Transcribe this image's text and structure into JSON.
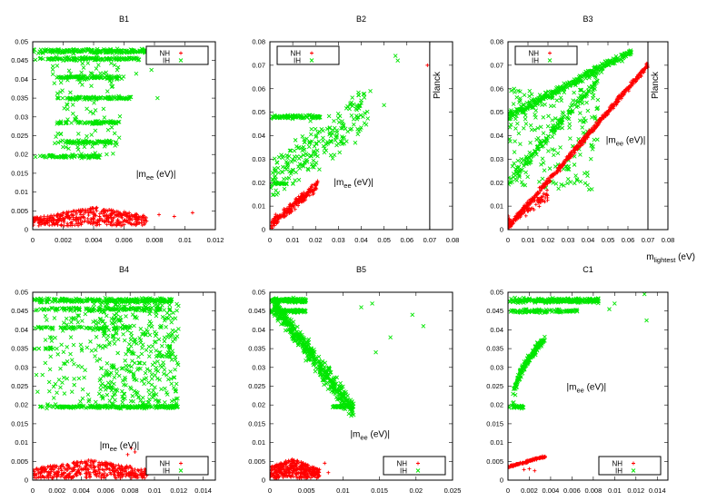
{
  "figure": {
    "x_axis_label_main": "m",
    "x_axis_label_sub": "lightest",
    "x_axis_label_unit": " (eV)",
    "colors": {
      "NH": "#ff0000",
      "IH": "#00e600",
      "frame": "#000000"
    }
  },
  "chart_data": [
    {
      "type": "scatter",
      "title": "B1",
      "xlim": [
        0,
        0.012
      ],
      "ylim": [
        0,
        0.05
      ],
      "xticks": [
        "0",
        "0.002",
        "0.004",
        "0.006",
        "0.008",
        "0.01",
        "0.012"
      ],
      "yticks": [
        "0",
        "0.005",
        "0.01",
        "0.015",
        "0.02",
        "0.025",
        "0.03",
        "0.035",
        "0.04",
        "0.045",
        "0.05"
      ],
      "annotation": {
        "pre": "|m",
        "sub": "ee",
        "post": " (eV)|",
        "x": 0.0068,
        "y": 0.014
      },
      "legend": {
        "position": "top-right",
        "entries": [
          "NH",
          "IH"
        ]
      },
      "series": [
        {
          "name": "NH",
          "marker": "plus",
          "color": "#ff0000",
          "regions": [
            {
              "kind": "blob",
              "x": [
                0,
                0.0075
              ],
              "ymin": 0.001,
              "ymax": 0.006,
              "peak": 0.0042,
              "n": 420
            },
            {
              "kind": "points",
              "pts": [
                [
                  0.0083,
                  0.004
                ],
                [
                  0.0093,
                  0.0035
                ],
                [
                  0.0105,
                  0.0045
                ]
              ]
            }
          ]
        },
        {
          "name": "IH",
          "marker": "cross",
          "color": "#00e600",
          "regions": [
            {
              "kind": "hband",
              "y": 0.0475,
              "dy": 0.0008,
              "x": [
                0,
                0.0078
              ],
              "n": 220
            },
            {
              "kind": "hband",
              "y": 0.0455,
              "dy": 0.0006,
              "x": [
                0,
                0.007
              ],
              "n": 120
            },
            {
              "kind": "hband",
              "y": 0.0405,
              "dy": 0.0007,
              "x": [
                0.0015,
                0.006
              ],
              "n": 90
            },
            {
              "kind": "hband",
              "y": 0.035,
              "dy": 0.0006,
              "x": [
                0.0015,
                0.0065
              ],
              "n": 90
            },
            {
              "kind": "hband",
              "y": 0.0285,
              "dy": 0.0006,
              "x": [
                0.0015,
                0.0058
              ],
              "n": 70
            },
            {
              "kind": "hband",
              "y": 0.0233,
              "dy": 0.0006,
              "x": [
                0.0012,
                0.0055
              ],
              "n": 70
            },
            {
              "kind": "hband",
              "y": 0.0195,
              "dy": 0.0006,
              "x": [
                0,
                0.0045
              ],
              "n": 80
            },
            {
              "kind": "cloud",
              "x": [
                0.0012,
                0.0058
              ],
              "y": [
                0.02,
                0.047
              ],
              "n": 110
            },
            {
              "kind": "points",
              "pts": [
                [
                  0.0083,
                  0.0482
                ],
                [
                  0.0085,
                  0.046
                ],
                [
                  0.0078,
                  0.0425
                ],
                [
                  0.0082,
                  0.035
                ],
                [
                  0.0089,
                  0.047
                ],
                [
                  0.0068,
                  0.0415
                ]
              ]
            }
          ]
        }
      ]
    },
    {
      "type": "scatter",
      "title": "B2",
      "xlim": [
        0,
        0.08
      ],
      "ylim": [
        0,
        0.08
      ],
      "xticks": [
        "0",
        "0.01",
        "0.02",
        "0.03",
        "0.04",
        "0.05",
        "0.06",
        "0.07",
        "0.08"
      ],
      "yticks": [
        "0",
        "0.01",
        "0.02",
        "0.03",
        "0.04",
        "0.05",
        "0.06",
        "0.07",
        "0.08"
      ],
      "vline": {
        "x": 0.07,
        "label": "Planck"
      },
      "annotation": {
        "pre": "|m",
        "sub": "ee",
        "post": " (eV)|",
        "x": 0.028,
        "y": 0.019
      },
      "legend": {
        "position": "top-left",
        "entries": [
          "NH",
          "IH"
        ]
      },
      "series": [
        {
          "name": "NH",
          "marker": "plus",
          "color": "#ff0000",
          "regions": [
            {
              "kind": "diag",
              "x": [
                0,
                0.021
              ],
              "y0": 0.0018,
              "slope": 0.82,
              "spread": 0.003,
              "n": 230
            },
            {
              "kind": "points",
              "pts": [
                [
                  0.069,
                  0.07
                ]
              ]
            }
          ]
        },
        {
          "name": "IH",
          "marker": "cross",
          "color": "#00e600",
          "regions": [
            {
              "kind": "hband",
              "y": 0.048,
              "dy": 0.0012,
              "x": [
                0,
                0.022
              ],
              "n": 90
            },
            {
              "kind": "hband",
              "y": 0.0195,
              "dy": 0.0008,
              "x": [
                0.002,
                0.008
              ],
              "n": 25
            },
            {
              "kind": "diag",
              "x": [
                0,
                0.043
              ],
              "y0": 0.02,
              "slope": 0.75,
              "spread": 0.015,
              "n": 230
            },
            {
              "kind": "points",
              "pts": [
                [
                  0.055,
                  0.074
                ],
                [
                  0.056,
                  0.072
                ],
                [
                  0.044,
                  0.059
                ],
                [
                  0.05,
                  0.053
                ],
                [
                  0.04,
                  0.055
                ]
              ]
            }
          ]
        }
      ]
    },
    {
      "type": "scatter",
      "title": "B3",
      "xlim": [
        0,
        0.08
      ],
      "ylim": [
        0,
        0.08
      ],
      "xticks": [
        "0",
        "0.01",
        "0.02",
        "0.03",
        "0.04",
        "0.05",
        "0.06",
        "0.07",
        "0.08"
      ],
      "yticks": [
        "0",
        "0.01",
        "0.02",
        "0.03",
        "0.04",
        "0.05",
        "0.06",
        "0.07",
        "0.08"
      ],
      "vline": {
        "x": 0.07,
        "label": "Planck"
      },
      "annotation": {
        "pre": "|m",
        "sub": "ee",
        "post": " (eV)|",
        "x": 0.049,
        "y": 0.037
      },
      "legend": {
        "position": "top-left",
        "entries": [
          "NH",
          "IH"
        ]
      },
      "series": [
        {
          "name": "NH",
          "marker": "plus",
          "color": "#ff0000",
          "regions": [
            {
              "kind": "diag",
              "x": [
                0,
                0.07
              ],
              "y0": 0.001,
              "slope": 0.985,
              "spread": 0.0018,
              "n": 520
            },
            {
              "kind": "diag",
              "x": [
                0,
                0.02
              ],
              "y0": 0.003,
              "slope": 0.6,
              "spread": 0.004,
              "n": 80
            }
          ]
        },
        {
          "name": "IH",
          "marker": "cross",
          "color": "#00e600",
          "regions": [
            {
              "kind": "diag",
              "x": [
                0,
                0.062
              ],
              "y0": 0.048,
              "slope": 0.45,
              "spread": 0.0025,
              "n": 320
            },
            {
              "kind": "diag",
              "x": [
                0,
                0.045
              ],
              "y0": 0.02,
              "slope": 0.98,
              "spread": 0.003,
              "n": 150
            },
            {
              "kind": "cloud",
              "x": [
                0,
                0.045
              ],
              "y": [
                0.017,
                0.06
              ],
              "n": 200
            }
          ]
        }
      ]
    },
    {
      "type": "scatter",
      "title": "B4",
      "xlim": [
        0,
        0.015
      ],
      "ylim": [
        0,
        0.05
      ],
      "xticks": [
        "0",
        "0.002",
        "0.004",
        "0.006",
        "0.008",
        "0.01",
        "0.012",
        "0.014"
      ],
      "yticks": [
        "0",
        "0.005",
        "0.01",
        "0.015",
        "0.02",
        "0.025",
        "0.03",
        "0.035",
        "0.04",
        "0.045",
        "0.05"
      ],
      "annotation": {
        "pre": "|m",
        "sub": "ee",
        "post": " (eV)|",
        "x": 0.0055,
        "y": 0.0085
      },
      "legend": {
        "position": "bottom-right",
        "entries": [
          "NH",
          "IH"
        ]
      },
      "series": [
        {
          "name": "NH",
          "marker": "plus",
          "color": "#ff0000",
          "regions": [
            {
              "kind": "blob",
              "x": [
                0,
                0.0095
              ],
              "ymin": 0.0005,
              "ymax": 0.0055,
              "peak": 0.0045,
              "n": 420
            },
            {
              "kind": "points",
              "pts": [
                [
                  0.0081,
                  0.0085
                ],
                [
                  0.0084,
                  0.0075
                ],
                [
                  0.0078,
                  0.0068
                ],
                [
                  0.0095,
                  0.003
                ]
              ]
            }
          ]
        },
        {
          "name": "IH",
          "marker": "cross",
          "color": "#00e600",
          "regions": [
            {
              "kind": "hband",
              "y": 0.0478,
              "dy": 0.0008,
              "x": [
                0,
                0.0115
              ],
              "n": 260
            },
            {
              "kind": "hband",
              "y": 0.0455,
              "dy": 0.0006,
              "x": [
                0,
                0.0105
              ],
              "n": 120
            },
            {
              "kind": "hband",
              "y": 0.0405,
              "dy": 0.0005,
              "x": [
                0,
                0.008
              ],
              "n": 70
            },
            {
              "kind": "hband",
              "y": 0.035,
              "dy": 0.0004,
              "x": [
                0,
                0.002
              ],
              "n": 12
            },
            {
              "kind": "hband",
              "y": 0.0195,
              "dy": 0.0005,
              "x": [
                0.0005,
                0.012
              ],
              "n": 180
            },
            {
              "kind": "cloud",
              "x": [
                0.0055,
                0.012
              ],
              "y": [
                0.019,
                0.048
              ],
              "n": 420
            },
            {
              "kind": "cloud",
              "x": [
                0.001,
                0.0055
              ],
              "y": [
                0.02,
                0.047
              ],
              "n": 90
            },
            {
              "kind": "points",
              "pts": [
                [
                  0.0003,
                  0.028
                ],
                [
                  0.0005,
                  0.035
                ],
                [
                  0.0002,
                  0.0405
                ],
                [
                  0.0004,
                  0.0235
                ],
                [
                  0.0008,
                  0.028
                ]
              ]
            }
          ]
        }
      ]
    },
    {
      "type": "scatter",
      "title": "B5",
      "xlim": [
        0,
        0.025
      ],
      "ylim": [
        0,
        0.05
      ],
      "xticks": [
        "0",
        "0.005",
        "0.01",
        "0.015",
        "0.02",
        "0.025"
      ],
      "yticks": [
        "0",
        "0.005",
        "0.01",
        "0.015",
        "0.02",
        "0.025",
        "0.03",
        "0.035",
        "0.04",
        "0.045",
        "0.05"
      ],
      "annotation": {
        "pre": "|m",
        "sub": "ee",
        "post": " (eV)|",
        "x": 0.011,
        "y": 0.0115
      },
      "legend": {
        "position": "bottom-right",
        "entries": [
          "NH",
          "IH"
        ]
      },
      "series": [
        {
          "name": "NH",
          "marker": "plus",
          "color": "#ff0000",
          "regions": [
            {
              "kind": "blob",
              "x": [
                0,
                0.0068
              ],
              "ymin": 0.0005,
              "ymax": 0.0058,
              "peak": 0.003,
              "n": 380
            },
            {
              "kind": "points",
              "pts": [
                [
                  0.008,
                  0.002
                ],
                [
                  0.0075,
                  0.0045
                ]
              ]
            }
          ]
        },
        {
          "name": "IH",
          "marker": "cross",
          "color": "#00e600",
          "regions": [
            {
              "kind": "hband",
              "y": 0.0478,
              "dy": 0.0008,
              "x": [
                0,
                0.005
              ],
              "n": 140
            },
            {
              "kind": "hband",
              "y": 0.045,
              "dy": 0.0006,
              "x": [
                0,
                0.005
              ],
              "n": 90
            },
            {
              "kind": "diag",
              "x": [
                0.0005,
                0.0115
              ],
              "y0": 0.048,
              "slope": -2.6,
              "spread": 0.004,
              "n": 460
            },
            {
              "kind": "hband",
              "y": 0.0195,
              "dy": 0.0005,
              "x": [
                0.0085,
                0.0115
              ],
              "n": 50
            },
            {
              "kind": "points",
              "pts": [
                [
                  0.021,
                  0.041
                ],
                [
                  0.0165,
                  0.038
                ],
                [
                  0.0125,
                  0.046
                ],
                [
                  0.014,
                  0.047
                ],
                [
                  0.0195,
                  0.044
                ],
                [
                  0.0145,
                  0.034
                ]
              ]
            }
          ]
        }
      ]
    },
    {
      "type": "scatter",
      "title": "C1",
      "xlim": [
        0,
        0.015
      ],
      "ylim": [
        0,
        0.05
      ],
      "xticks": [
        "0",
        "0.002",
        "0.004",
        "0.006",
        "0.008",
        "0.01",
        "0.012",
        "0.014"
      ],
      "yticks": [
        "0",
        "0.005",
        "0.01",
        "0.015",
        "0.02",
        "0.025",
        "0.03",
        "0.035",
        "0.04",
        "0.045",
        "0.05"
      ],
      "annotation": {
        "pre": "|m",
        "sub": "ee",
        "post": " (eV)|",
        "x": 0.0055,
        "y": 0.024
      },
      "legend": {
        "position": "bottom-right",
        "entries": [
          "NH",
          "IH"
        ]
      },
      "series": [
        {
          "name": "NH",
          "marker": "plus",
          "color": "#ff0000",
          "regions": [
            {
              "kind": "diag",
              "x": [
                0,
                0.0035
              ],
              "y0": 0.0035,
              "slope": 0.8,
              "spread": 0.0004,
              "n": 140
            },
            {
              "kind": "points",
              "pts": [
                [
                  0.0015,
                  0.0028
                ],
                [
                  0.002,
                  0.003
                ],
                [
                  0.0025,
                  0.0025
                ]
              ]
            }
          ]
        },
        {
          "name": "IH",
          "marker": "cross",
          "color": "#00e600",
          "regions": [
            {
              "kind": "hband",
              "y": 0.0478,
              "dy": 0.0009,
              "x": [
                0,
                0.0085
              ],
              "n": 260
            },
            {
              "kind": "hband",
              "y": 0.045,
              "dy": 0.0006,
              "x": [
                0,
                0.0065
              ],
              "n": 100
            },
            {
              "kind": "hband",
              "y": 0.0195,
              "dy": 0.0005,
              "x": [
                0,
                0.0015
              ],
              "n": 40
            },
            {
              "kind": "curve",
              "x": [
                0.0005,
                0.0035
              ],
              "y": [
                0.02,
                0.0375
              ],
              "spread": 0.0015,
              "n": 160
            },
            {
              "kind": "points",
              "pts": [
                [
                  0.013,
                  0.0425
                ],
                [
                  0.0128,
                  0.0495
                ],
                [
                  0.01,
                  0.047
                ],
                [
                  0.0095,
                  0.0455
                ]
              ]
            }
          ]
        }
      ]
    }
  ]
}
